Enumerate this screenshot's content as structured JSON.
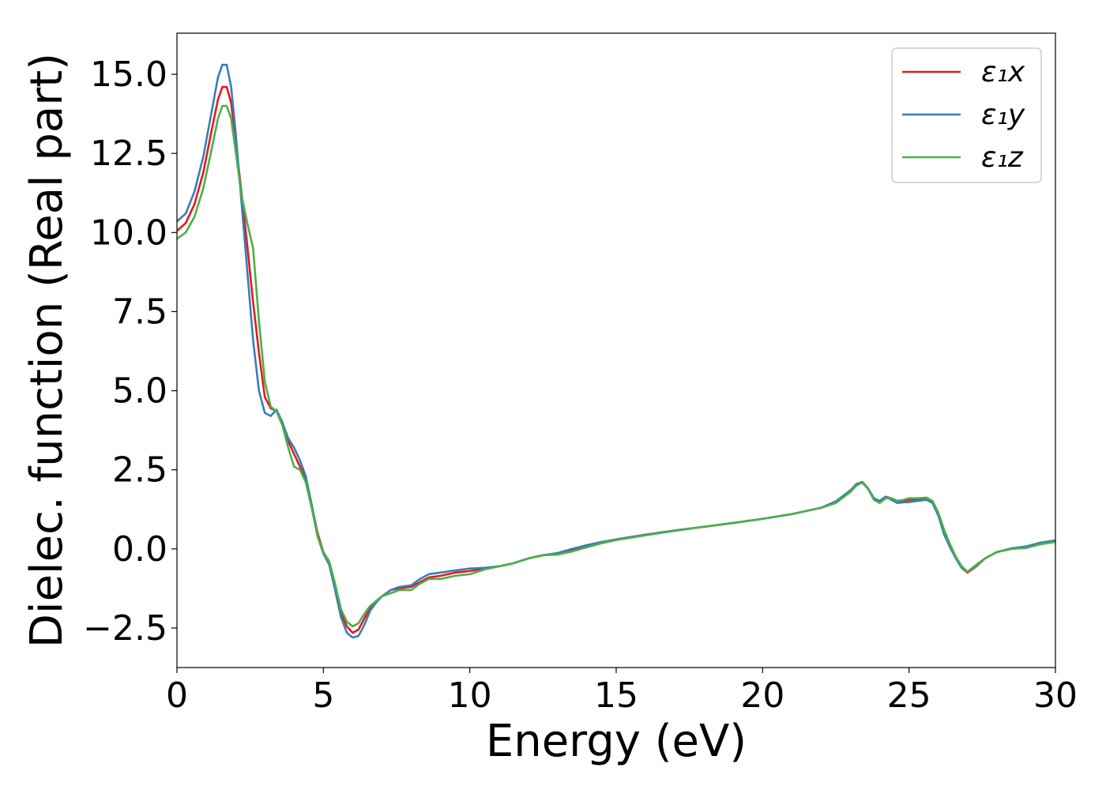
{
  "chart_data": {
    "type": "line",
    "xlabel": "Energy (eV)",
    "ylabel": "Dielec. function (Real part)",
    "xlim": [
      0,
      30
    ],
    "ylim": [
      -3.75,
      16.3
    ],
    "xticks": [
      0,
      5,
      10,
      15,
      20,
      25,
      30
    ],
    "xtick_labels": [
      "0",
      "5",
      "10",
      "15",
      "20",
      "25",
      "30"
    ],
    "yticks": [
      -2.5,
      0.0,
      2.5,
      5.0,
      7.5,
      10.0,
      12.5,
      15.0
    ],
    "ytick_labels": [
      "−2.5",
      "0.0",
      "2.5",
      "5.0",
      "7.5",
      "10.0",
      "12.5",
      "15.0"
    ],
    "grid": false,
    "legend_position": "top-right",
    "series": [
      {
        "name": "ε₁x",
        "color": "#e41a1c",
        "x": [
          0,
          0.3,
          0.6,
          0.9,
          1.2,
          1.4,
          1.55,
          1.7,
          1.85,
          2.0,
          2.2,
          2.4,
          2.6,
          2.8,
          3.0,
          3.2,
          3.4,
          3.6,
          3.8,
          4.0,
          4.2,
          4.4,
          4.6,
          4.8,
          5.0,
          5.2,
          5.4,
          5.6,
          5.8,
          6.0,
          6.2,
          6.4,
          6.6,
          6.8,
          7.0,
          7.3,
          7.6,
          8.0,
          8.3,
          8.6,
          9.0,
          9.5,
          10.0,
          10.5,
          11.0,
          11.5,
          12.0,
          12.5,
          13.0,
          13.5,
          14.0,
          14.5,
          15.0,
          16.0,
          17.0,
          18.0,
          19.0,
          20.0,
          21.0,
          22.0,
          22.5,
          23.0,
          23.2,
          23.4,
          23.6,
          23.8,
          24.0,
          24.2,
          24.4,
          24.6,
          24.8,
          25.0,
          25.3,
          25.6,
          25.8,
          26.0,
          26.2,
          26.4,
          26.6,
          26.8,
          27.0,
          27.3,
          27.6,
          28.0,
          28.5,
          29.0,
          29.5,
          30.0
        ],
        "y": [
          10.05,
          10.3,
          10.9,
          11.9,
          13.3,
          14.2,
          14.6,
          14.6,
          14.1,
          12.9,
          11.3,
          9.6,
          7.8,
          6.2,
          4.8,
          4.45,
          4.35,
          4.0,
          3.4,
          3.0,
          2.6,
          2.2,
          1.4,
          0.5,
          -0.1,
          -0.4,
          -1.2,
          -2.0,
          -2.45,
          -2.65,
          -2.55,
          -2.2,
          -1.85,
          -1.65,
          -1.5,
          -1.3,
          -1.25,
          -1.2,
          -1.05,
          -0.9,
          -0.85,
          -0.75,
          -0.7,
          -0.62,
          -0.55,
          -0.45,
          -0.3,
          -0.2,
          -0.15,
          -0.02,
          0.1,
          0.2,
          0.3,
          0.45,
          0.58,
          0.7,
          0.82,
          0.95,
          1.1,
          1.3,
          1.5,
          1.85,
          2.05,
          2.1,
          1.9,
          1.6,
          1.5,
          1.65,
          1.6,
          1.5,
          1.52,
          1.55,
          1.58,
          1.6,
          1.5,
          1.1,
          0.5,
          0.1,
          -0.3,
          -0.6,
          -0.75,
          -0.55,
          -0.3,
          -0.1,
          0.0,
          0.05,
          0.18,
          0.25
        ]
      },
      {
        "name": "ε₁y",
        "color": "#377eb8",
        "x": [
          0,
          0.3,
          0.6,
          0.9,
          1.2,
          1.4,
          1.55,
          1.7,
          1.85,
          2.0,
          2.2,
          2.4,
          2.6,
          2.8,
          3.0,
          3.2,
          3.4,
          3.6,
          3.8,
          4.0,
          4.2,
          4.4,
          4.6,
          4.8,
          5.0,
          5.2,
          5.4,
          5.6,
          5.8,
          6.0,
          6.2,
          6.4,
          6.6,
          6.8,
          7.0,
          7.3,
          7.6,
          8.0,
          8.3,
          8.6,
          9.0,
          9.5,
          10.0,
          10.5,
          11.0,
          11.5,
          12.0,
          12.5,
          13.0,
          13.5,
          14.0,
          14.5,
          15.0,
          16.0,
          17.0,
          18.0,
          19.0,
          20.0,
          21.0,
          22.0,
          22.5,
          23.0,
          23.2,
          23.4,
          23.6,
          23.8,
          24.0,
          24.2,
          24.4,
          24.6,
          24.8,
          25.0,
          25.3,
          25.6,
          25.8,
          26.0,
          26.2,
          26.4,
          26.6,
          26.8,
          27.0,
          27.3,
          27.6,
          28.0,
          28.5,
          29.0,
          29.5,
          30.0
        ],
        "y": [
          10.35,
          10.6,
          11.3,
          12.4,
          13.9,
          14.9,
          15.3,
          15.3,
          14.6,
          13.2,
          11.0,
          8.8,
          6.6,
          5.0,
          4.3,
          4.2,
          4.4,
          4.0,
          3.5,
          3.2,
          2.8,
          2.3,
          1.4,
          0.4,
          -0.15,
          -0.5,
          -1.3,
          -2.15,
          -2.65,
          -2.8,
          -2.75,
          -2.4,
          -1.95,
          -1.7,
          -1.5,
          -1.3,
          -1.2,
          -1.15,
          -0.95,
          -0.8,
          -0.75,
          -0.68,
          -0.62,
          -0.6,
          -0.55,
          -0.45,
          -0.3,
          -0.2,
          -0.13,
          0.0,
          0.12,
          0.22,
          0.3,
          0.45,
          0.58,
          0.7,
          0.82,
          0.95,
          1.1,
          1.3,
          1.5,
          1.85,
          2.05,
          2.12,
          1.92,
          1.6,
          1.52,
          1.65,
          1.55,
          1.45,
          1.47,
          1.48,
          1.52,
          1.55,
          1.45,
          1.05,
          0.45,
          0.05,
          -0.3,
          -0.6,
          -0.72,
          -0.5,
          -0.3,
          -0.1,
          0.02,
          0.08,
          0.2,
          0.27
        ]
      },
      {
        "name": "ε₁z",
        "color": "#4daf4a",
        "x": [
          0,
          0.3,
          0.6,
          0.9,
          1.2,
          1.4,
          1.55,
          1.7,
          1.85,
          2.0,
          2.2,
          2.4,
          2.6,
          2.8,
          3.0,
          3.2,
          3.4,
          3.6,
          3.8,
          4.0,
          4.2,
          4.4,
          4.6,
          4.8,
          5.0,
          5.2,
          5.4,
          5.6,
          5.8,
          6.0,
          6.2,
          6.4,
          6.6,
          6.8,
          7.0,
          7.3,
          7.6,
          8.0,
          8.3,
          8.6,
          9.0,
          9.5,
          10.0,
          10.5,
          11.0,
          11.5,
          12.0,
          12.5,
          13.0,
          13.5,
          14.0,
          14.5,
          15.0,
          16.0,
          17.0,
          18.0,
          19.0,
          20.0,
          21.0,
          22.0,
          22.5,
          23.0,
          23.2,
          23.4,
          23.6,
          23.8,
          24.0,
          24.2,
          24.4,
          24.6,
          24.8,
          25.0,
          25.3,
          25.6,
          25.8,
          26.0,
          26.2,
          26.4,
          26.6,
          26.8,
          27.0,
          27.3,
          27.6,
          28.0,
          28.5,
          29.0,
          29.5,
          30.0
        ],
        "y": [
          9.8,
          10.0,
          10.5,
          11.4,
          12.7,
          13.6,
          14.0,
          14.0,
          13.6,
          12.6,
          11.2,
          10.3,
          9.5,
          7.2,
          5.3,
          4.5,
          4.35,
          3.9,
          3.2,
          2.6,
          2.5,
          2.1,
          1.3,
          0.4,
          -0.1,
          -0.4,
          -1.1,
          -1.9,
          -2.3,
          -2.45,
          -2.35,
          -2.05,
          -1.8,
          -1.65,
          -1.5,
          -1.4,
          -1.3,
          -1.3,
          -1.1,
          -0.95,
          -0.95,
          -0.85,
          -0.8,
          -0.65,
          -0.55,
          -0.45,
          -0.3,
          -0.2,
          -0.18,
          -0.08,
          0.05,
          0.18,
          0.28,
          0.43,
          0.57,
          0.7,
          0.82,
          0.95,
          1.1,
          1.3,
          1.45,
          1.8,
          2.0,
          2.1,
          1.9,
          1.55,
          1.45,
          1.6,
          1.6,
          1.52,
          1.55,
          1.6,
          1.6,
          1.62,
          1.52,
          1.15,
          0.6,
          0.15,
          -0.25,
          -0.55,
          -0.72,
          -0.52,
          -0.3,
          -0.1,
          0.0,
          0.03,
          0.15,
          0.22
        ]
      }
    ]
  }
}
